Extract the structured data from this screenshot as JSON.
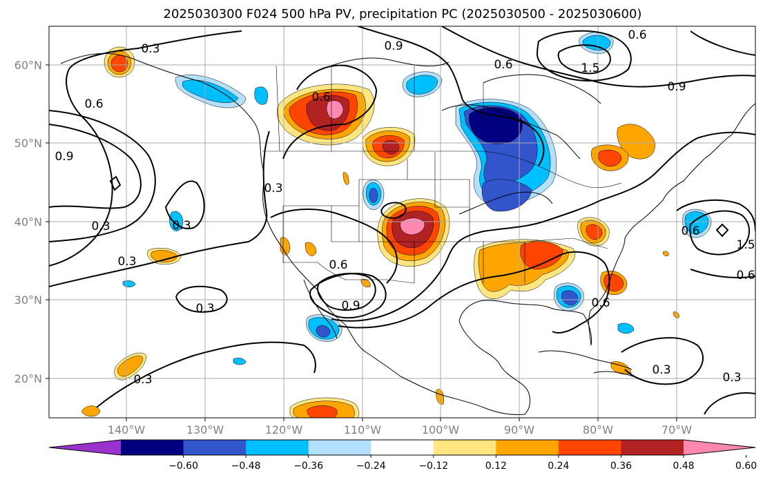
{
  "title": "2025030300 F024 500 hPa PV, precipitation PC (2025030500 - 2025030600)",
  "map": {
    "lon_range": [
      -150,
      -60
    ],
    "lat_range": [
      15,
      65
    ],
    "lon_ticks": [
      {
        "value": -140,
        "label": "140°W"
      },
      {
        "value": -130,
        "label": "130°W"
      },
      {
        "value": -120,
        "label": "120°W"
      },
      {
        "value": -110,
        "label": "110°W"
      },
      {
        "value": -100,
        "label": "100°W"
      },
      {
        "value": -90,
        "label": "90°W"
      },
      {
        "value": -80,
        "label": "80°W"
      },
      {
        "value": -70,
        "label": "70°W"
      }
    ],
    "lat_ticks": [
      {
        "value": 20,
        "label": "20°N"
      },
      {
        "value": 30,
        "label": "30°N"
      },
      {
        "value": 40,
        "label": "40°N"
      },
      {
        "value": 50,
        "label": "50°N"
      },
      {
        "value": 60,
        "label": "60°N"
      }
    ],
    "grid": true,
    "pv_contour_labels": [
      "0.3",
      "0.6",
      "0.9",
      "1.5"
    ]
  },
  "colorbar": {
    "ticks": [
      "−0.60",
      "−0.48",
      "−0.36",
      "−0.24",
      "−0.12",
      "0.12",
      "0.24",
      "0.36",
      "0.48",
      "0.60"
    ],
    "colors": [
      "#9933cc",
      "#000080",
      "#3355cc",
      "#00bfff",
      "#b3e0ff",
      "#ffffff",
      "#ffe680",
      "#ffa500",
      "#ff4500",
      "#b22222",
      "#ff88b0"
    ],
    "extend": "both"
  },
  "palette": {
    "neg_strong": "#000080",
    "neg_mid": "#3355cc",
    "neg_weak": "#00bfff",
    "neg_faint": "#b3e0ff",
    "pos_faint": "#ffe680",
    "pos_weak": "#ffa500",
    "pos_mid": "#ff4500",
    "pos_strong": "#b22222",
    "pos_max": "#ff88b0"
  }
}
